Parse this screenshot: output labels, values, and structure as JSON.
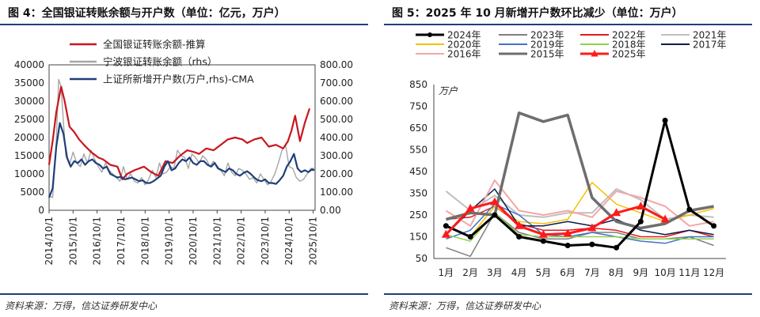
{
  "left_panel": {
    "title": "图 4：全国银证转账余额与开户数（单位：亿元，万户）",
    "source": "资料来源：万得，信达证券研发中心"
  },
  "right_panel": {
    "title": "图 5：2025 年 10 月新增开户数环比减少（单位：万户）",
    "source": "资料来源：万得，信达证券研发中心"
  },
  "chart_data": [
    {
      "type": "line",
      "title": "全国银证转账余额与开户数",
      "x_tick_labels": [
        "2014/10/1",
        "2015/10/1",
        "2016/10/1",
        "2017/10/1",
        "2018/10/1",
        "2019/10/1",
        "2020/10/1",
        "2021/10/1",
        "2022/10/1",
        "2023/10/1",
        "2024/10/1",
        "2025/10/1"
      ],
      "x_range": [
        2014.75,
        2025.83
      ],
      "y_left": {
        "range": [
          0,
          40000
        ],
        "ticks": [
          "0",
          "5000",
          "10000",
          "15000",
          "20000",
          "25000",
          "30000",
          "35000",
          "40000"
        ]
      },
      "y_right": {
        "range": [
          0,
          800
        ],
        "ticks": [
          "0.00",
          "100.00",
          "200.00",
          "300.00",
          "400.00",
          "500.00",
          "600.00",
          "700.00",
          "800.00"
        ]
      },
      "legend": [
        "全国银证转账余额-推算",
        "宁波银证转账余额（rhs）",
        "上证所新增开户数(万户,rhs)-CMA"
      ],
      "series": [
        {
          "name": "全国银证转账余额-推算",
          "axis": "left",
          "color": "#c8161d",
          "x": [
            2014.75,
            2014.9,
            2015.05,
            2015.25,
            2015.4,
            2015.6,
            2015.8,
            2016.0,
            2016.2,
            2016.5,
            2016.8,
            2017.0,
            2017.3,
            2017.6,
            2017.8,
            2018.0,
            2018.3,
            2018.7,
            2019.0,
            2019.3,
            2019.6,
            2019.9,
            2020.2,
            2020.5,
            2020.8,
            2021.0,
            2021.3,
            2021.6,
            2021.9,
            2022.2,
            2022.5,
            2022.8,
            2023.0,
            2023.3,
            2023.6,
            2023.9,
            2024.2,
            2024.5,
            2024.7,
            2024.85,
            2025.0,
            2025.2,
            2025.4,
            2025.6
          ],
          "y": [
            12500,
            19000,
            27000,
            34000,
            30000,
            23000,
            21500,
            19500,
            18000,
            16000,
            14500,
            14000,
            12500,
            12000,
            8500,
            10000,
            11000,
            12000,
            10500,
            9500,
            13500,
            13000,
            15000,
            16500,
            16000,
            15500,
            17000,
            16500,
            18000,
            19500,
            20000,
            19500,
            18500,
            19500,
            20000,
            17500,
            18000,
            17000,
            19000,
            22000,
            26000,
            19000,
            24000,
            28000
          ]
        },
        {
          "name": "宁波银证转账余额（rhs）",
          "axis": "right",
          "color": "#a6a6a6",
          "x": [
            2014.75,
            2014.9,
            2015.05,
            2015.15,
            2015.25,
            2015.35,
            2015.45,
            2015.6,
            2015.75,
            2015.9,
            2016.05,
            2016.2,
            2016.35,
            2016.5,
            2016.65,
            2016.8,
            2016.95,
            2017.1,
            2017.25,
            2017.4,
            2017.55,
            2017.7,
            2017.85,
            2018.0,
            2018.15,
            2018.3,
            2018.45,
            2018.6,
            2018.75,
            2018.9,
            2019.05,
            2019.2,
            2019.35,
            2019.5,
            2019.65,
            2019.8,
            2019.95,
            2020.1,
            2020.25,
            2020.4,
            2020.55,
            2020.7,
            2020.85,
            2021.0,
            2021.15,
            2021.3,
            2021.45,
            2021.6,
            2021.75,
            2021.9,
            2022.05,
            2022.2,
            2022.35,
            2022.5,
            2022.65,
            2022.8,
            2022.95,
            2023.1,
            2023.25,
            2023.4,
            2023.55,
            2023.7,
            2023.85,
            2024.0,
            2024.15,
            2024.3,
            2024.45,
            2024.6,
            2024.75,
            2024.9,
            2025.05,
            2025.2,
            2025.35,
            2025.5,
            2025.65,
            2025.8
          ],
          "y": [
            80,
            70,
            380,
            720,
            680,
            480,
            300,
            250,
            320,
            260,
            240,
            310,
            260,
            330,
            280,
            240,
            210,
            260,
            220,
            200,
            180,
            160,
            240,
            170,
            200,
            160,
            150,
            180,
            140,
            170,
            220,
            180,
            260,
            200,
            210,
            240,
            230,
            330,
            300,
            290,
            230,
            310,
            290,
            260,
            300,
            280,
            240,
            270,
            230,
            220,
            190,
            260,
            210,
            190,
            230,
            220,
            200,
            170,
            180,
            150,
            200,
            170,
            140,
            160,
            200,
            260,
            330,
            360,
            240,
            230,
            180,
            160,
            170,
            200,
            230,
            230
          ]
        },
        {
          "name": "上证所新增开户数(万户,rhs)-CMA",
          "axis": "right",
          "color": "#1f3f7a",
          "x": [
            2014.75,
            2014.9,
            2015.05,
            2015.2,
            2015.35,
            2015.5,
            2015.65,
            2015.8,
            2015.95,
            2016.1,
            2016.25,
            2016.4,
            2016.55,
            2016.7,
            2016.85,
            2017.0,
            2017.15,
            2017.3,
            2017.45,
            2017.6,
            2017.75,
            2017.9,
            2018.05,
            2018.2,
            2018.35,
            2018.5,
            2018.65,
            2018.8,
            2018.95,
            2019.1,
            2019.25,
            2019.4,
            2019.55,
            2019.7,
            2019.85,
            2020.0,
            2020.15,
            2020.3,
            2020.45,
            2020.6,
            2020.75,
            2020.9,
            2021.05,
            2021.2,
            2021.35,
            2021.5,
            2021.65,
            2021.8,
            2021.95,
            2022.1,
            2022.25,
            2022.4,
            2022.55,
            2022.7,
            2022.85,
            2023.0,
            2023.15,
            2023.3,
            2023.45,
            2023.6,
            2023.75,
            2023.9,
            2024.05,
            2024.2,
            2024.35,
            2024.5,
            2024.65,
            2024.8,
            2024.95,
            2025.1,
            2025.25,
            2025.4,
            2025.55,
            2025.7,
            2025.8
          ],
          "y": [
            70,
            120,
            350,
            480,
            420,
            290,
            240,
            270,
            260,
            280,
            250,
            270,
            280,
            260,
            250,
            230,
            240,
            200,
            190,
            180,
            185,
            170,
            175,
            180,
            170,
            160,
            165,
            150,
            150,
            160,
            175,
            190,
            240,
            270,
            220,
            230,
            260,
            280,
            270,
            290,
            260,
            250,
            270,
            270,
            250,
            240,
            260,
            230,
            220,
            210,
            230,
            220,
            200,
            190,
            205,
            215,
            200,
            180,
            165,
            160,
            170,
            150,
            150,
            145,
            165,
            190,
            240,
            270,
            310,
            230,
            210,
            220,
            210,
            225,
            220
          ]
        }
      ]
    },
    {
      "type": "line",
      "title": "2025 年 10 月新增开户数环比减少",
      "ylabel": "万户",
      "categories": [
        "1月",
        "2月",
        "3月",
        "4月",
        "5月",
        "6月",
        "7月",
        "8月",
        "9月",
        "10月",
        "11月",
        "12月"
      ],
      "ylim": [
        50,
        850
      ],
      "y_ticks": [
        "50",
        "150",
        "250",
        "350",
        "450",
        "550",
        "650",
        "750",
        "850"
      ],
      "series": [
        {
          "name": "2024年",
          "color": "#000000",
          "marker": "dot",
          "width": 3,
          "values": [
            200,
            150,
            250,
            150,
            130,
            110,
            115,
            100,
            220,
            685,
            275,
            200
          ]
        },
        {
          "name": "2023年",
          "color": "#7f7f7f",
          "marker": "none",
          "width": 1.5,
          "values": [
            100,
            60,
            260,
            170,
            140,
            140,
            170,
            170,
            140,
            140,
            150,
            110
          ]
        },
        {
          "name": "2022年",
          "color": "#e31a1c",
          "marker": "none",
          "width": 1.5,
          "values": [
            230,
            240,
            290,
            210,
            180,
            180,
            190,
            180,
            150,
            150,
            180,
            150
          ]
        },
        {
          "name": "2021年",
          "color": "#bfbfbf",
          "marker": "none",
          "width": 2,
          "values": [
            360,
            270,
            340,
            250,
            240,
            260,
            260,
            370,
            320,
            230,
            250,
            240
          ]
        },
        {
          "name": "2020年",
          "color": "#f5c100",
          "marker": "none",
          "width": 1.5,
          "values": [
            200,
            150,
            290,
            220,
            210,
            230,
            400,
            300,
            260,
            220,
            250,
            280
          ]
        },
        {
          "name": "2019年",
          "color": "#4472c4",
          "marker": "none",
          "width": 1.5,
          "values": [
            140,
            180,
            300,
            250,
            160,
            150,
            170,
            150,
            130,
            120,
            150,
            150
          ]
        },
        {
          "name": "2018年",
          "color": "#92d050",
          "marker": "none",
          "width": 1.5,
          "values": [
            160,
            130,
            260,
            160,
            150,
            150,
            150,
            150,
            140,
            140,
            140,
            140
          ]
        },
        {
          "name": "2017年",
          "color": "#0b1c4d",
          "marker": "none",
          "width": 1.5,
          "values": [
            160,
            270,
            370,
            200,
            200,
            220,
            200,
            230,
            180,
            160,
            180,
            160
          ]
        },
        {
          "name": "2016年",
          "color": "#f4a6a6",
          "marker": "none",
          "width": 2,
          "values": [
            270,
            200,
            410,
            270,
            250,
            270,
            240,
            360,
            330,
            290,
            200,
            220
          ]
        },
        {
          "name": "2015年",
          "color": "#6e6e6e",
          "marker": "none",
          "width": 3.5,
          "values": [
            230,
            260,
            250,
            720,
            680,
            710,
            330,
            220,
            190,
            210,
            270,
            290
          ]
        },
        {
          "name": "2025年",
          "color": "#ff1a1a",
          "marker": "triangle",
          "width": 3,
          "values": [
            160,
            280,
            310,
            200,
            160,
            165,
            190,
            260,
            290,
            230,
            null,
            null
          ]
        }
      ]
    }
  ]
}
